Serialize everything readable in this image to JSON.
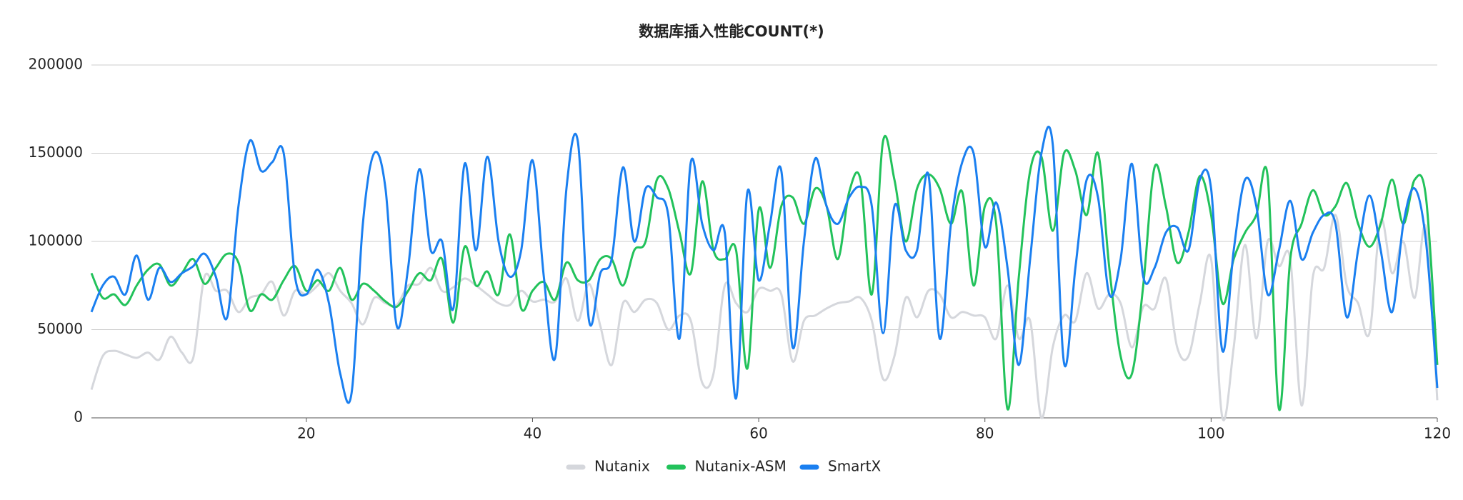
{
  "chart_data": {
    "type": "line",
    "title": "数据库插入性能COUNT(*)",
    "x": [
      1,
      2,
      3,
      4,
      5,
      6,
      7,
      8,
      9,
      10,
      11,
      12,
      13,
      14,
      15,
      16,
      17,
      18,
      19,
      20,
      21,
      22,
      23,
      24,
      25,
      26,
      27,
      28,
      29,
      30,
      31,
      32,
      33,
      34,
      35,
      36,
      37,
      38,
      39,
      40,
      41,
      42,
      43,
      44,
      45,
      46,
      47,
      48,
      49,
      50,
      51,
      52,
      53,
      54,
      55,
      56,
      57,
      58,
      59,
      60,
      61,
      62,
      63,
      64,
      65,
      66,
      67,
      68,
      69,
      70,
      71,
      72,
      73,
      74,
      75,
      76,
      77,
      78,
      79,
      80,
      81,
      82,
      83,
      84,
      85,
      86,
      87,
      88,
      89,
      90,
      91,
      92,
      93,
      94,
      95,
      96,
      97,
      98,
      99,
      100,
      101,
      102,
      103,
      104,
      105,
      106,
      107,
      108,
      109,
      110,
      111,
      112,
      113,
      114,
      115,
      116,
      117,
      118,
      119,
      120
    ],
    "series": [
      {
        "name": "Nutanix",
        "color": "#d5d7dc",
        "values": [
          16000,
          35000,
          38000,
          36000,
          34000,
          37000,
          33000,
          46000,
          37000,
          34000,
          80000,
          72000,
          72000,
          60000,
          68000,
          70000,
          77000,
          58000,
          72000,
          70000,
          75000,
          82000,
          72000,
          65000,
          53000,
          68000,
          65000,
          64000,
          75000,
          76000,
          85000,
          72000,
          74000,
          79000,
          75000,
          70000,
          65000,
          64000,
          72000,
          66000,
          67000,
          66000,
          79000,
          55000,
          76000,
          52000,
          30000,
          65000,
          60000,
          67000,
          65000,
          50000,
          58000,
          55000,
          20000,
          25000,
          75000,
          65000,
          60000,
          73000,
          72000,
          70000,
          32000,
          55000,
          58000,
          62000,
          65000,
          66000,
          68000,
          55000,
          22000,
          35000,
          68000,
          57000,
          72000,
          70000,
          57000,
          60000,
          58000,
          57000,
          45000,
          75000,
          45000,
          55000,
          0,
          40000,
          58000,
          55000,
          82000,
          62000,
          70000,
          65000,
          40000,
          63000,
          62000,
          79000,
          40000,
          35000,
          65000,
          90000,
          0,
          40000,
          98000,
          45000,
          100000,
          86000,
          90000,
          7000,
          80000,
          85000,
          115000,
          75000,
          65000,
          48000,
          112000,
          82000,
          100000,
          68000,
          108000,
          10000
        ]
      },
      {
        "name": "Nutanix-ASM",
        "color": "#22c25b",
        "values": [
          82000,
          68000,
          70000,
          64000,
          75000,
          84000,
          87000,
          75000,
          82000,
          90000,
          76000,
          85000,
          93000,
          88000,
          61000,
          70000,
          67000,
          78000,
          86000,
          72000,
          78000,
          72000,
          85000,
          67000,
          76000,
          72000,
          66000,
          63000,
          72000,
          82000,
          78000,
          90000,
          54000,
          97000,
          75000,
          83000,
          70000,
          104000,
          62000,
          72000,
          77000,
          67000,
          88000,
          78000,
          78000,
          90000,
          90000,
          75000,
          95000,
          100000,
          135000,
          130000,
          105000,
          82000,
          134000,
          95000,
          90000,
          95000,
          28000,
          118000,
          85000,
          120000,
          125000,
          110000,
          130000,
          120000,
          90000,
          128000,
          135000,
          70000,
          157000,
          135000,
          100000,
          130000,
          138000,
          130000,
          110000,
          128000,
          75000,
          120000,
          110000,
          5000,
          80000,
          140000,
          148000,
          106000,
          150000,
          140000,
          115000,
          150000,
          85000,
          35000,
          25000,
          75000,
          142000,
          120000,
          88000,
          105000,
          137000,
          115000,
          65000,
          90000,
          105000,
          115000,
          137000,
          5000,
          90000,
          110000,
          129000,
          115000,
          120000,
          133000,
          110000,
          97000,
          110000,
          135000,
          110000,
          135000,
          125000,
          30000
        ]
      },
      {
        "name": "SmartX",
        "color": "#1a7ff0",
        "values": [
          60000,
          75000,
          80000,
          70000,
          92000,
          67000,
          85000,
          77000,
          82000,
          86000,
          93000,
          80000,
          57000,
          120000,
          157000,
          140000,
          145000,
          150000,
          80000,
          70000,
          84000,
          65000,
          25000,
          14000,
          110000,
          150000,
          130000,
          52000,
          85000,
          141000,
          95000,
          100000,
          62000,
          144000,
          95000,
          148000,
          100000,
          80000,
          95000,
          146000,
          80000,
          34000,
          130000,
          157000,
          55000,
          82000,
          90000,
          142000,
          100000,
          130000,
          125000,
          115000,
          45000,
          145000,
          110000,
          95000,
          105000,
          11000,
          128000,
          78000,
          110000,
          140000,
          40000,
          100000,
          147000,
          120000,
          110000,
          125000,
          131000,
          120000,
          48000,
          120000,
          95000,
          95000,
          138000,
          45000,
          110000,
          145000,
          150000,
          97000,
          122000,
          85000,
          30000,
          90000,
          150000,
          155000,
          31000,
          85000,
          135000,
          125000,
          70000,
          90000,
          144000,
          80000,
          85000,
          105000,
          108000,
          95000,
          135000,
          130000,
          38000,
          95000,
          135000,
          120000,
          70000,
          95000,
          123000,
          90000,
          105000,
          115000,
          110000,
          57000,
          95000,
          126000,
          95000,
          60000,
          110000,
          130000,
          100000,
          17000
        ]
      }
    ],
    "xlim": [
      1,
      120
    ],
    "xticks": [
      20,
      40,
      60,
      80,
      100,
      120
    ],
    "ylim": [
      0,
      200000
    ],
    "yticks": [
      0,
      50000,
      100000,
      150000,
      200000
    ],
    "grid": true,
    "legend": "bottom"
  }
}
